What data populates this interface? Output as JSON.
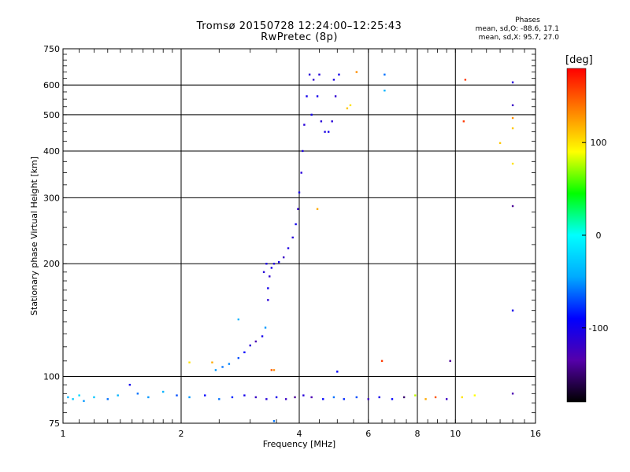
{
  "header": {
    "title": "Tromsø 20150728 12:24:00–12:25:43",
    "subtitle": "RwPretec (8p)"
  },
  "phase_stats": {
    "title": "Phases",
    "line_o": "mean, sd,O: -88.6, 17.1",
    "line_x": "mean, sd,X:  95.7, 27.0"
  },
  "colorbar": {
    "unit": "deg",
    "ticks": [
      "100",
      "0",
      "-100"
    ],
    "range": [
      -180,
      180
    ],
    "colors": [
      "#000000",
      "#5500aa",
      "#0000ff",
      "#00aaff",
      "#00ffff",
      "#00ff00",
      "#ffff00",
      "#ff8000",
      "#ff0000"
    ]
  },
  "chart_data": {
    "type": "scatter",
    "xlabel": "Frequency [MHz]",
    "ylabel": "Stationary phase Virtual Height [km]",
    "xscale": "log",
    "yscale": "log",
    "xlim": [
      1,
      16
    ],
    "ylim": [
      75,
      750
    ],
    "x_ticks": [
      "1",
      "2",
      "4",
      "6",
      "8",
      "10",
      "16"
    ],
    "y_ticks": [
      "75",
      "100",
      "200",
      "300",
      "400",
      "500",
      "600",
      "750"
    ],
    "grid": true,
    "color_meaning": "phase (deg)",
    "series": [
      {
        "points": [
          [
            1.03,
            88,
            -40
          ],
          [
            1.06,
            87,
            -30
          ],
          [
            1.1,
            89,
            -20
          ],
          [
            1.13,
            86,
            -50
          ],
          [
            1.2,
            88,
            -30
          ],
          [
            1.3,
            87,
            -60
          ],
          [
            1.38,
            89,
            -40
          ],
          [
            1.48,
            95,
            -100
          ],
          [
            1.55,
            90,
            -60
          ],
          [
            1.65,
            88,
            -50
          ],
          [
            1.8,
            91,
            -40
          ],
          [
            1.95,
            89,
            -70
          ],
          [
            2.1,
            88,
            -50
          ],
          [
            2.3,
            89,
            -90
          ],
          [
            2.5,
            87,
            -60
          ],
          [
            2.7,
            88,
            -80
          ],
          [
            2.9,
            89,
            -100
          ],
          [
            3.1,
            88,
            -120
          ],
          [
            3.3,
            87,
            -110
          ],
          [
            3.5,
            88,
            -100
          ],
          [
            3.7,
            87,
            -120
          ],
          [
            3.9,
            88,
            -140
          ],
          [
            4.1,
            89,
            -110
          ],
          [
            4.3,
            88,
            -130
          ],
          [
            4.6,
            87,
            -90
          ],
          [
            4.9,
            88,
            -60
          ],
          [
            5.2,
            87,
            -80
          ],
          [
            5.6,
            88,
            -70
          ],
          [
            6.0,
            87,
            -120
          ],
          [
            6.4,
            88,
            -100
          ],
          [
            6.9,
            87,
            -90
          ],
          [
            7.4,
            88,
            -150
          ],
          [
            7.9,
            89,
            80
          ],
          [
            8.4,
            87,
            120
          ],
          [
            8.9,
            88,
            150
          ],
          [
            9.5,
            87,
            -120
          ],
          [
            10.4,
            88,
            100
          ],
          [
            11.2,
            89,
            90
          ],
          [
            2.45,
            104,
            -50
          ],
          [
            2.55,
            106,
            -60
          ],
          [
            2.65,
            108,
            -55
          ],
          [
            2.8,
            112,
            -70
          ],
          [
            2.9,
            116,
            -90
          ],
          [
            3.0,
            121,
            -110
          ],
          [
            3.1,
            124,
            -130
          ],
          [
            3.22,
            128,
            -100
          ],
          [
            3.28,
            135,
            -50
          ],
          [
            2.8,
            142,
            -40
          ],
          [
            2.1,
            109,
            100
          ],
          [
            2.4,
            109,
            120
          ],
          [
            3.45,
            104,
            130
          ],
          [
            3.33,
            160,
            -110
          ],
          [
            3.33,
            172,
            -100
          ],
          [
            3.36,
            185,
            -115
          ],
          [
            3.4,
            195,
            -100
          ],
          [
            3.45,
            200,
            -110
          ],
          [
            3.55,
            202,
            -100
          ],
          [
            3.65,
            208,
            -120
          ],
          [
            3.75,
            220,
            -105
          ],
          [
            3.85,
            235,
            -110
          ],
          [
            3.92,
            255,
            -100
          ],
          [
            3.97,
            280,
            -115
          ],
          [
            4.0,
            310,
            -100
          ],
          [
            4.05,
            350,
            -110
          ],
          [
            4.08,
            400,
            -105
          ],
          [
            4.12,
            470,
            -110
          ],
          [
            4.18,
            560,
            -100
          ],
          [
            4.25,
            640,
            -110
          ],
          [
            4.35,
            620,
            -115
          ],
          [
            4.45,
            560,
            -100
          ],
          [
            4.55,
            480,
            -110
          ],
          [
            4.65,
            450,
            -105
          ],
          [
            4.75,
            450,
            -100
          ],
          [
            4.85,
            480,
            -110
          ],
          [
            4.95,
            560,
            -115
          ],
          [
            5.05,
            640,
            -100
          ],
          [
            4.9,
            620,
            -105
          ],
          [
            4.5,
            640,
            -110
          ],
          [
            4.3,
            500,
            -100
          ],
          [
            3.25,
            190,
            -110
          ],
          [
            3.3,
            200,
            -105
          ],
          [
            4.45,
            280,
            120
          ],
          [
            5.3,
            520,
            110
          ],
          [
            5.4,
            530,
            100
          ],
          [
            5.6,
            650,
            130
          ],
          [
            6.5,
            110,
            160
          ],
          [
            6.6,
            640,
            -60
          ],
          [
            6.6,
            580,
            -40
          ],
          [
            5.0,
            103,
            -90
          ],
          [
            3.4,
            104,
            150
          ],
          [
            10.5,
            480,
            160
          ],
          [
            10.6,
            620,
            160
          ],
          [
            13.0,
            420,
            110
          ],
          [
            14.0,
            370,
            100
          ],
          [
            14.0,
            460,
            110
          ],
          [
            14.0,
            490,
            130
          ],
          [
            14.0,
            610,
            -110
          ],
          [
            14.0,
            530,
            -120
          ],
          [
            14.0,
            285,
            -140
          ],
          [
            14.0,
            150,
            -100
          ],
          [
            14.0,
            90,
            -130
          ],
          [
            9.7,
            110,
            -140
          ],
          [
            3.45,
            76,
            -60
          ]
        ]
      }
    ]
  }
}
